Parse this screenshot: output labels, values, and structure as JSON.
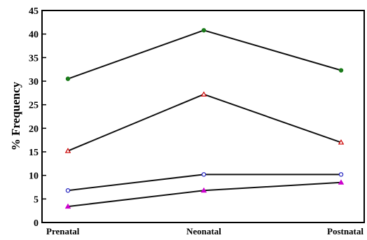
{
  "chart_data": {
    "type": "line",
    "title": "",
    "xlabel": "",
    "ylabel": "% Frequency",
    "categories": [
      "Prenatal",
      "Neonatal",
      "Postnatal"
    ],
    "ylim": [
      0,
      45
    ],
    "yticks": [
      0,
      5,
      10,
      15,
      20,
      25,
      30,
      35,
      40,
      45
    ],
    "grid": false,
    "legend": "none",
    "series": [
      {
        "marker": "filled-circle",
        "color": "#1a7a1a",
        "values": [
          30.5,
          40.8,
          32.3
        ]
      },
      {
        "marker": "open-triangle",
        "color": "#cc0000",
        "values": [
          15.2,
          27.2,
          17.0
        ]
      },
      {
        "marker": "open-circle",
        "color": "#1f1fbf",
        "values": [
          6.8,
          10.2,
          10.2
        ]
      },
      {
        "marker": "filled-triangle",
        "color": "#cc00cc",
        "values": [
          3.4,
          6.8,
          8.5
        ]
      }
    ]
  }
}
